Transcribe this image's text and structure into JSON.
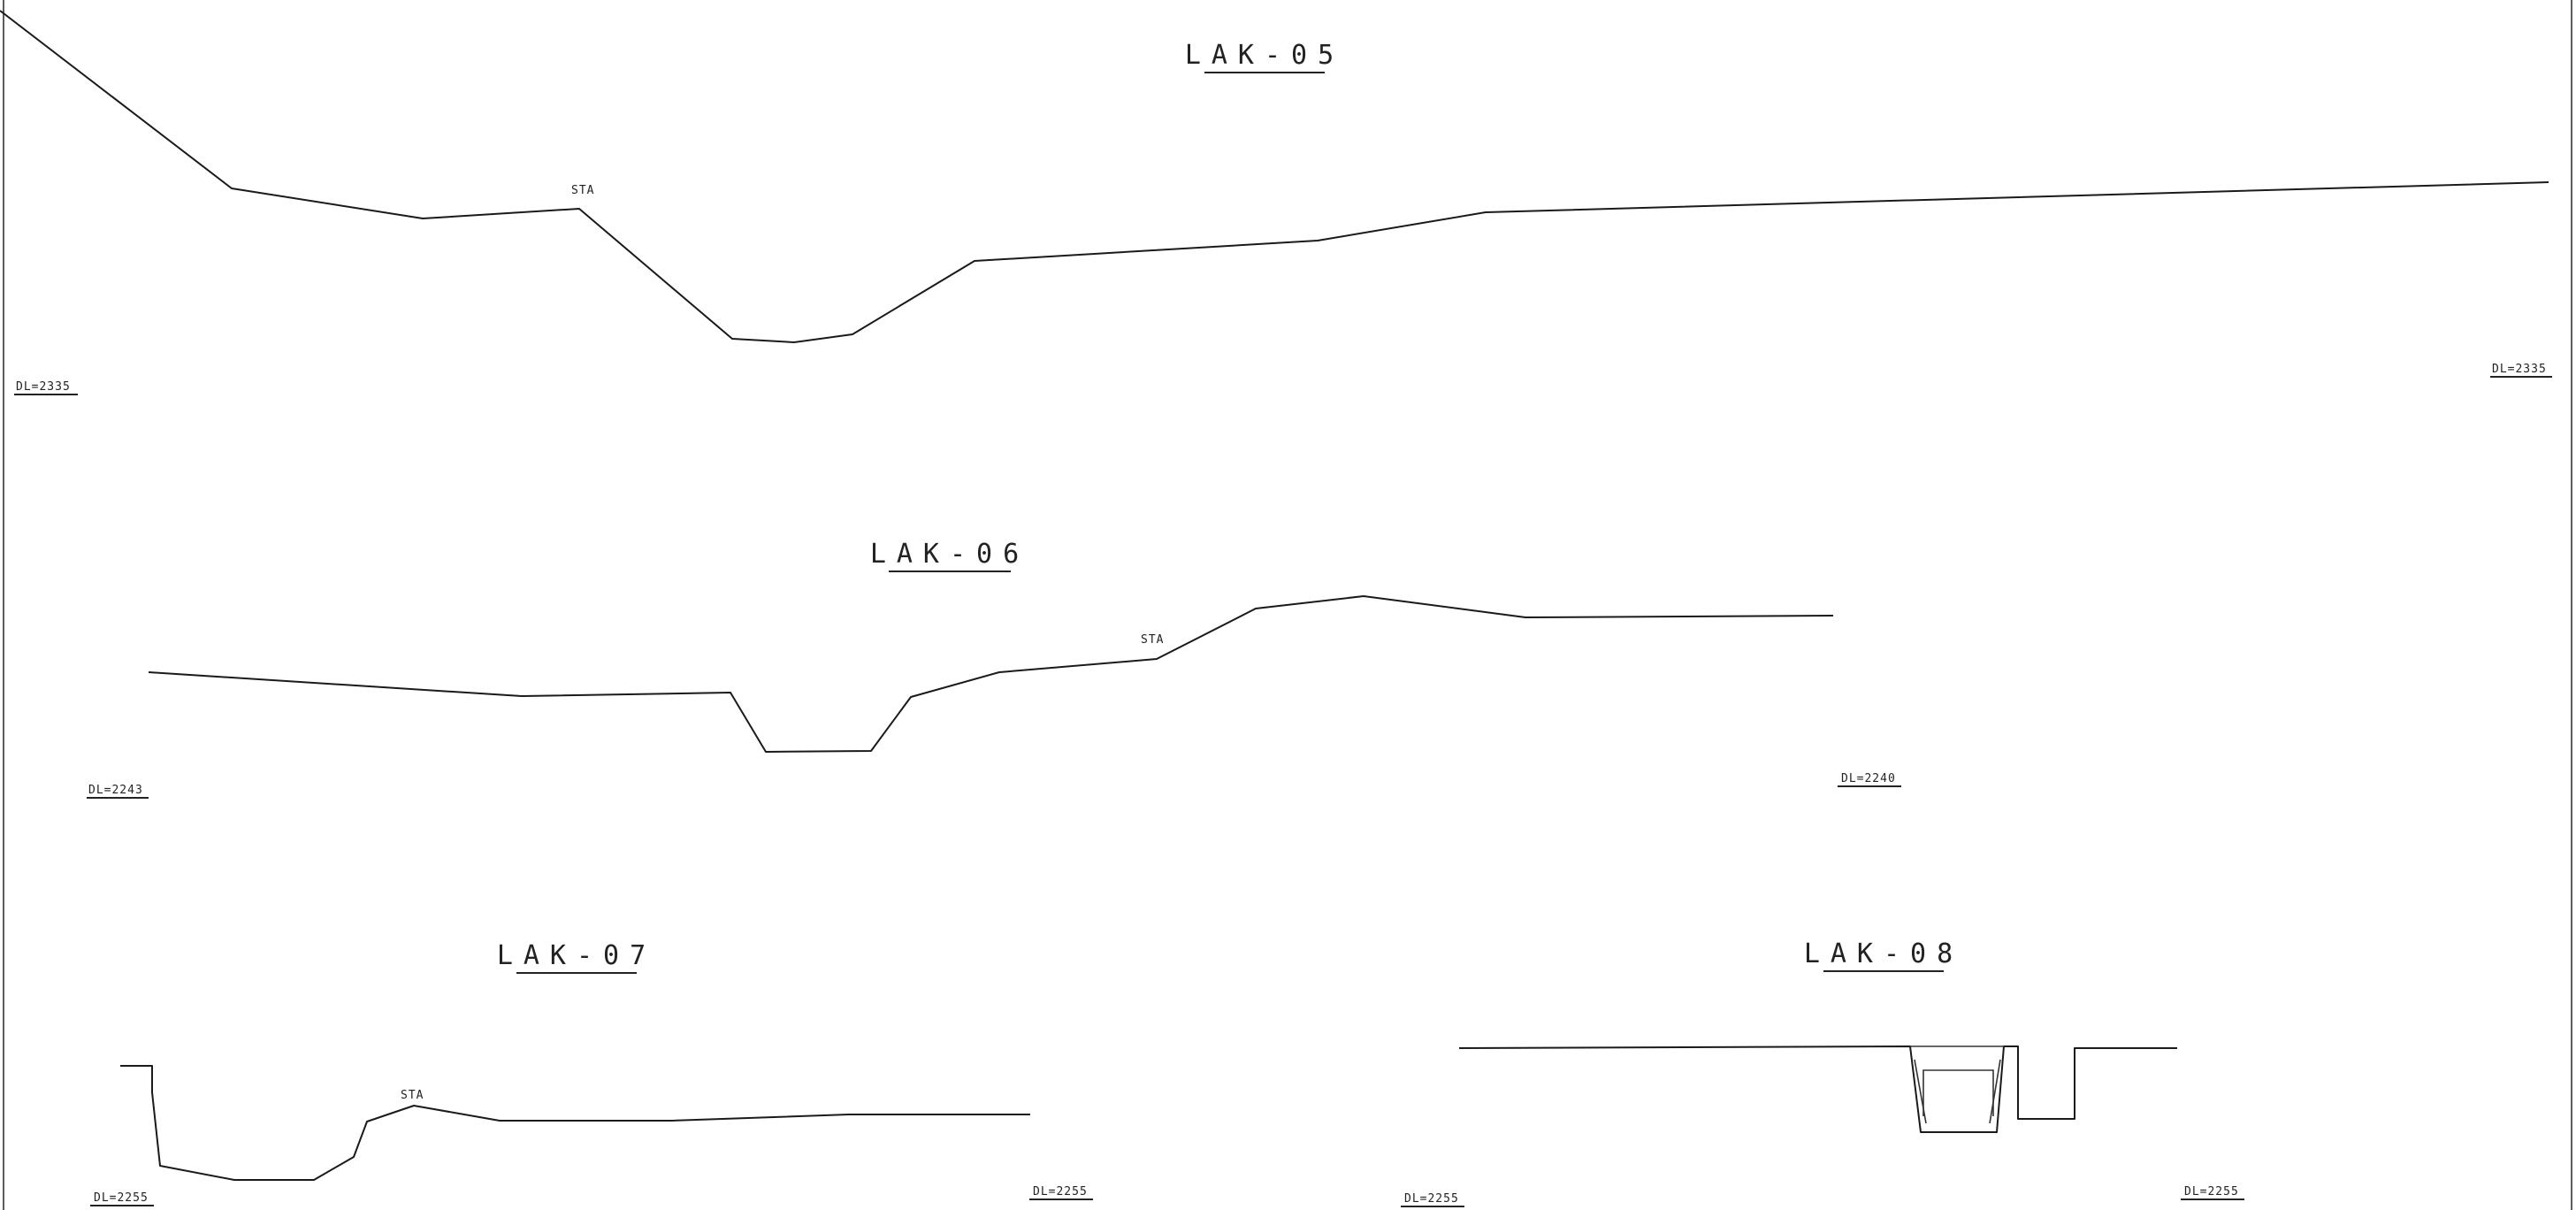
{
  "profiles": [
    {
      "title": "LAK-05",
      "station_label": "STA",
      "datum_left": "DL=2335",
      "datum_right": "DL=2335"
    },
    {
      "title": "LAK-06",
      "station_label": "STA",
      "datum_left": "DL=2243",
      "datum_right": "DL=2240"
    },
    {
      "title": "LAK-07",
      "station_label": "STA",
      "datum_left": "DL=2255",
      "datum_right": "DL=2255"
    },
    {
      "title": "LAK-08",
      "datum_left": "DL=2255",
      "datum_right": "DL=2255"
    }
  ]
}
